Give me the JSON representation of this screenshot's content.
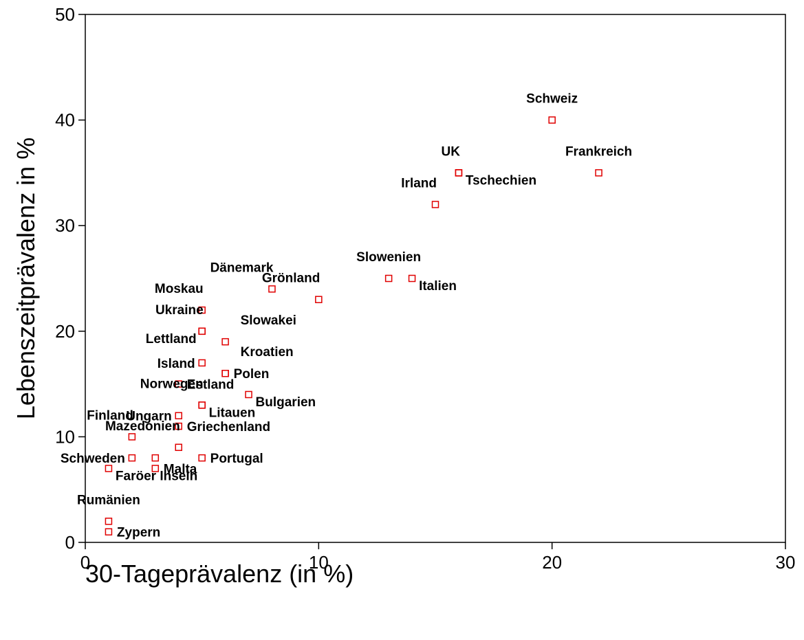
{
  "chart_data": {
    "type": "scatter",
    "title": "",
    "xlabel": "30-Tageprävalenz   (in %)",
    "ylabel": "Lebenszeitprävalenz in %",
    "xlim": [
      0,
      30
    ],
    "ylim": [
      0,
      50
    ],
    "xticks": [
      0,
      10,
      20,
      30
    ],
    "yticks": [
      0,
      10,
      20,
      30,
      40,
      50
    ],
    "grid": false,
    "marker": "open-square",
    "marker_color": "#e00000",
    "points": [
      {
        "label": "Schweiz",
        "x": 20,
        "y": 40,
        "label_pos": "above"
      },
      {
        "label": "Frankreich",
        "x": 22,
        "y": 35,
        "label_pos": "above"
      },
      {
        "label": "UK",
        "x": 16,
        "y": 35,
        "label_pos": "above-left"
      },
      {
        "label": "Tschechien",
        "x": 16,
        "y": 35,
        "label_pos": "below-right"
      },
      {
        "label": "Irland",
        "x": 15,
        "y": 32,
        "label_pos": "above-left"
      },
      {
        "label": "Slowenien",
        "x": 13,
        "y": 25,
        "label_pos": "above"
      },
      {
        "label": "Italien",
        "x": 14,
        "y": 25,
        "label_pos": "below-right"
      },
      {
        "label": "Dänemark",
        "x": 8,
        "y": 24,
        "label_pos": "above-left"
      },
      {
        "label": "Grönland",
        "x": 10,
        "y": 23,
        "label_pos": "above-left"
      },
      {
        "label": "Moskau",
        "x": 5,
        "y": 22,
        "label_pos": "above-left"
      },
      {
        "label": "Ukraine",
        "x": 5,
        "y": 20,
        "label_pos": "above-left"
      },
      {
        "label": "Lettland",
        "x": 5,
        "y": 20,
        "label_pos": "below-left"
      },
      {
        "label": "Slowakei",
        "x": 6,
        "y": 19,
        "label_pos": "above-right"
      },
      {
        "label": "Island",
        "x": 5,
        "y": 17,
        "label_pos": "left"
      },
      {
        "label": "Kroatien",
        "x": 6,
        "y": 16,
        "label_pos": "above-right"
      },
      {
        "label": "Polen",
        "x": 6,
        "y": 16,
        "label_pos": "right"
      },
      {
        "label": "Estland",
        "x": 4,
        "y": 15,
        "label_pos": "right"
      },
      {
        "label": "Bulgarien",
        "x": 7,
        "y": 14,
        "label_pos": "below-right"
      },
      {
        "label": "Norwegen",
        "x": 5,
        "y": 13,
        "label_pos": "above-left"
      },
      {
        "label": "Litauen",
        "x": 5,
        "y": 13,
        "label_pos": "below-right"
      },
      {
        "label": "Ungarn",
        "x": 4,
        "y": 12,
        "label_pos": "left"
      },
      {
        "label": "Finland",
        "x": 2,
        "y": 10,
        "label_pos": "above-left"
      },
      {
        "label": "Griechenland",
        "x": 4,
        "y": 11,
        "label_pos": "right"
      },
      {
        "label": "Mazedonien",
        "x": 4,
        "y": 9,
        "label_pos": "above-left"
      },
      {
        "label": "Schweden",
        "x": 2,
        "y": 8,
        "label_pos": "left"
      },
      {
        "label": "Portugal",
        "x": 5,
        "y": 8,
        "label_pos": "right"
      },
      {
        "label": "Malta",
        "x": 3,
        "y": 7,
        "label_pos": "right"
      },
      {
        "label": "Faröer Inseln",
        "x": 1,
        "y": 7,
        "label_pos": "below-right"
      },
      {
        "label": "",
        "x": 3,
        "y": 8
      },
      {
        "label": "Rumänien",
        "x": 1,
        "y": 2,
        "label_pos": "above"
      },
      {
        "label": "Zypern",
        "x": 1,
        "y": 1,
        "label_pos": "right"
      }
    ]
  }
}
